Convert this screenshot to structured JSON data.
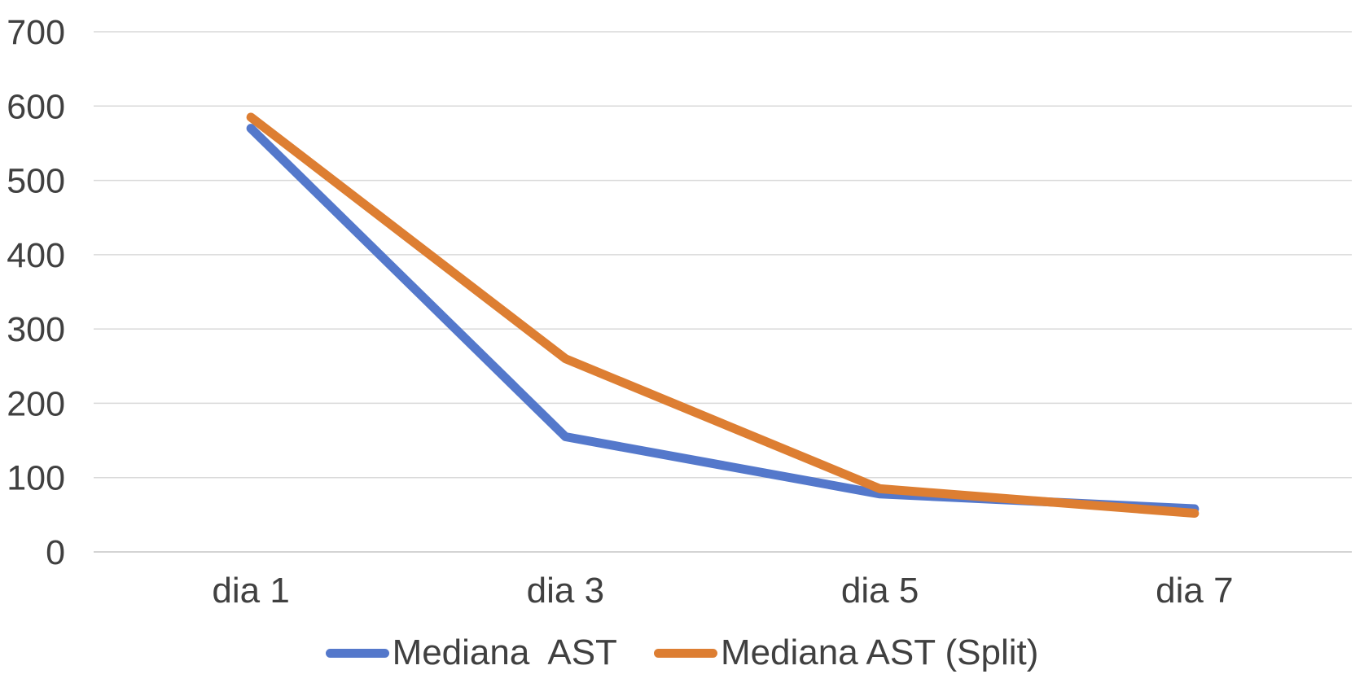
{
  "chart_data": {
    "type": "line",
    "categories": [
      "dia 1",
      "dia 3",
      "dia 5",
      "dia 7"
    ],
    "series": [
      {
        "name": "Mediana  AST",
        "color": "#5478CB",
        "values": [
          570,
          155,
          78,
          58
        ]
      },
      {
        "name": "Mediana AST (Split)",
        "color": "#DD7E32",
        "values": [
          585,
          260,
          85,
          52
        ]
      }
    ],
    "title": "",
    "xlabel": "",
    "ylabel": "",
    "ylim": [
      0,
      700
    ],
    "yticks": [
      0,
      100,
      200,
      300,
      400,
      500,
      600,
      700
    ],
    "grid": true,
    "legend_position": "bottom"
  },
  "style": {
    "gridline_color": "#d9d9d9",
    "baseline_color": "#c6c6c6",
    "axis_text_color": "#404040",
    "background_color": "#ffffff"
  }
}
